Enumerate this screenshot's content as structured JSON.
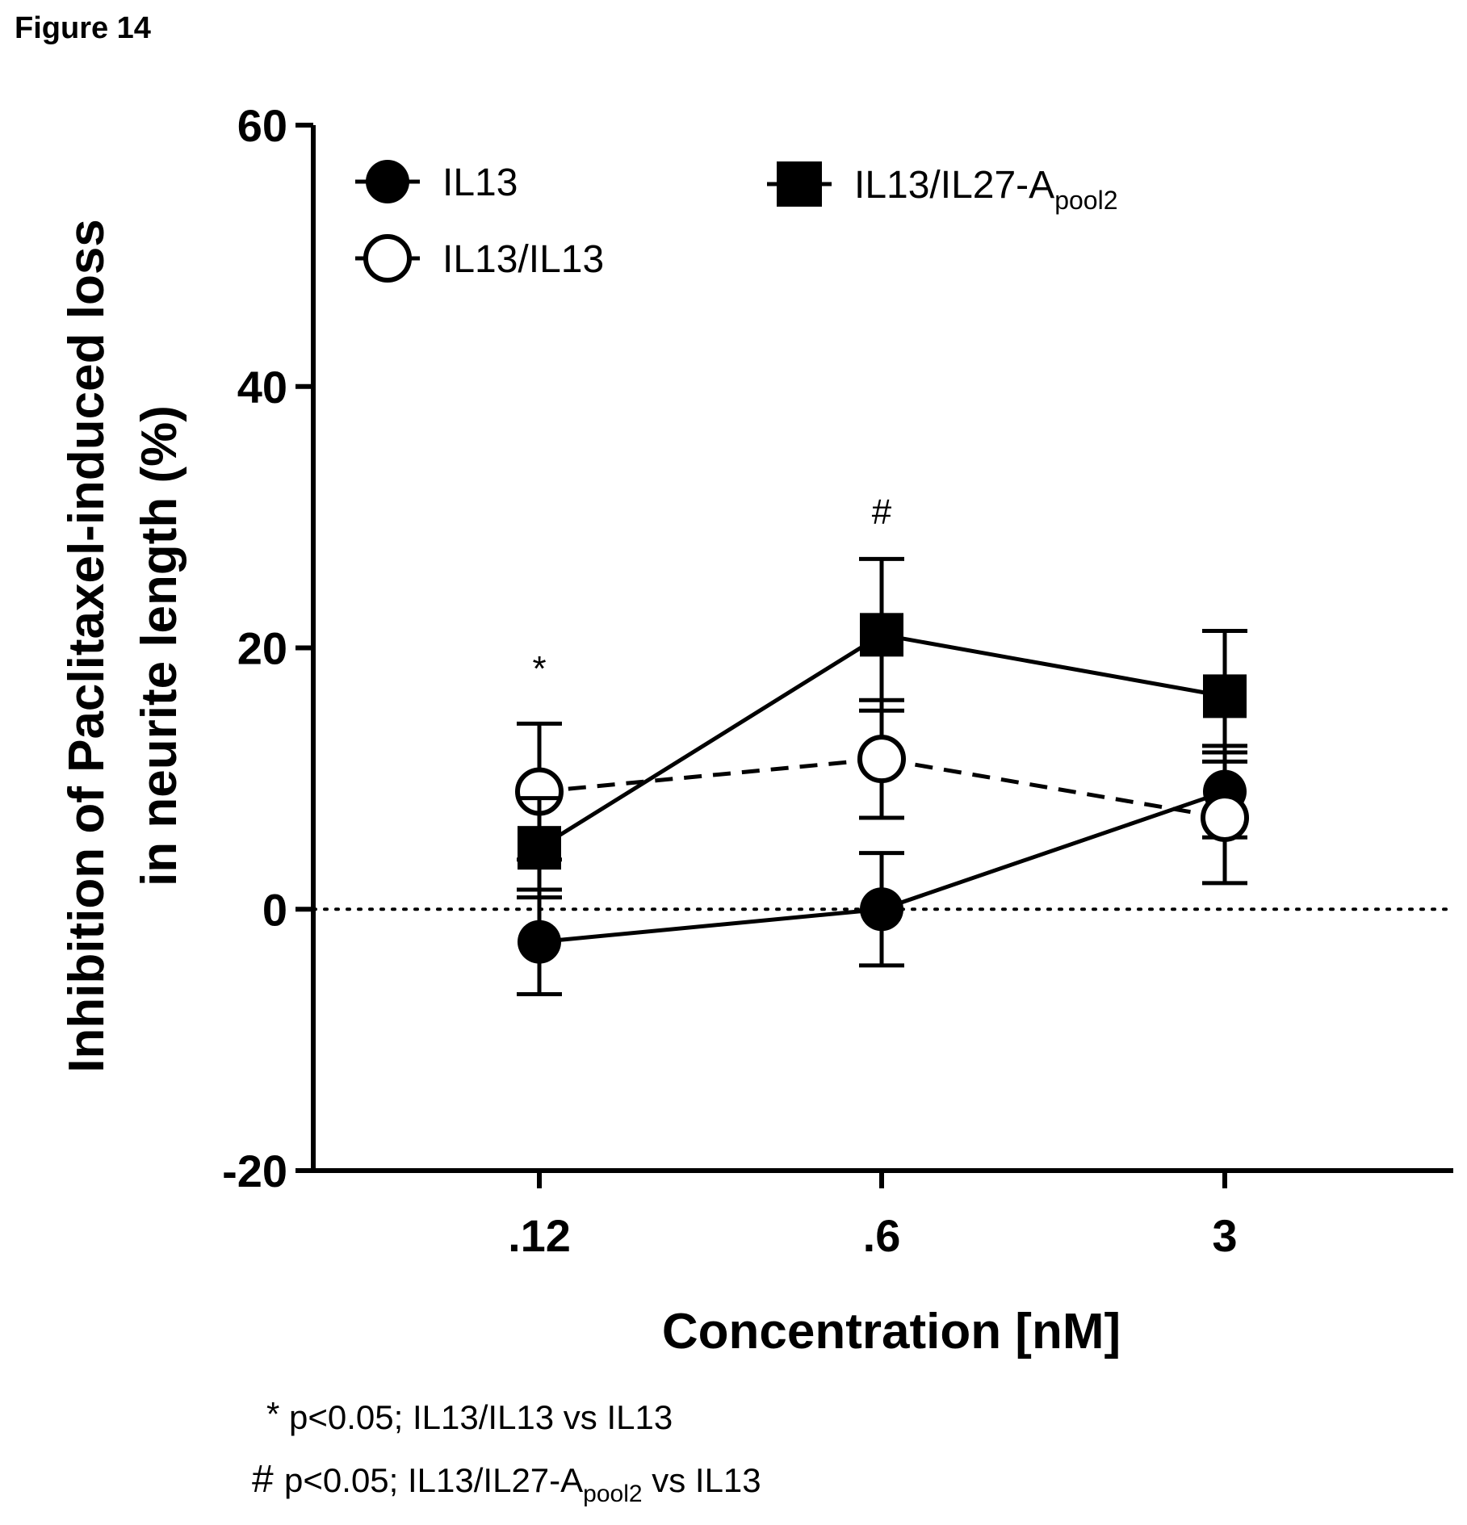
{
  "figure_label": "Figure 14",
  "chart_data": {
    "type": "line",
    "title": "",
    "xlabel": "Concentration [nM]",
    "ylabel_lines": [
      "Inhibition of Paclitaxel-induced loss",
      "in neurite length (%)"
    ],
    "categories": [
      ".12",
      ".6",
      "3"
    ],
    "ylim": [
      -20,
      60
    ],
    "yticks": [
      -20,
      0,
      20,
      40,
      60
    ],
    "reference_line": 0,
    "grid": false,
    "legend_position": "top-left",
    "series": [
      {
        "name": "IL13",
        "name_sub": "",
        "marker": "filled-circle",
        "line": "solid",
        "values": [
          -2.5,
          0,
          9
        ],
        "err": [
          4,
          4.3,
          3.5
        ]
      },
      {
        "name": "IL13/IL13",
        "name_sub": "",
        "marker": "open-circle",
        "line": "dashed",
        "values": [
          9,
          11.5,
          7
        ],
        "err": [
          5.2,
          4.5,
          5
        ]
      },
      {
        "name": "IL13/IL27-A",
        "name_sub": "pool2",
        "marker": "filled-square",
        "line": "solid",
        "values": [
          4.7,
          21,
          16.3
        ],
        "err": [
          3.8,
          5.8,
          5
        ]
      }
    ],
    "annotations": [
      {
        "text": "*",
        "category": ".12",
        "y": 17.5
      },
      {
        "text": "#",
        "category": ".6",
        "y": 29.5
      }
    ],
    "footnotes": [
      {
        "symbol": "*",
        "text": "p<0.05; IL13/IL13 vs IL13"
      },
      {
        "symbol": "#",
        "pre": "p<0.05; IL13/IL27-A",
        "sub": "pool2",
        "post": "vs IL13"
      }
    ]
  }
}
